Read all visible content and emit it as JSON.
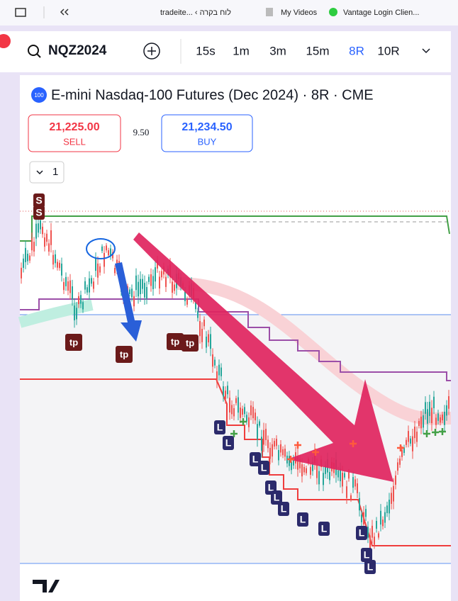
{
  "browser_bar": {
    "bookmarks": [
      "tradeite... ‹ לוח בקרה",
      "My Videos",
      "Vantage Login Clien..."
    ]
  },
  "toolbar": {
    "symbol": "NQZ2024",
    "intervals": [
      "15s",
      "1m",
      "3m",
      "15m",
      "8R",
      "10R"
    ],
    "active_interval": "8R"
  },
  "chart": {
    "badge": "100",
    "title": "E-mini Nasdaq-100 Futures (Dec 2024) · 8R · CME",
    "sell": {
      "price": "21,225.00",
      "label": "SELL"
    },
    "spread": "9.50",
    "buy": {
      "price": "21,234.50",
      "label": "BUY"
    },
    "indicators_count": "1",
    "markers": [
      "S",
      "S",
      "tp",
      "tp",
      "tp",
      "tp",
      "L",
      "L",
      "L",
      "L",
      "L",
      "L",
      "L",
      "L",
      "L",
      "L",
      "L",
      "L"
    ]
  }
}
